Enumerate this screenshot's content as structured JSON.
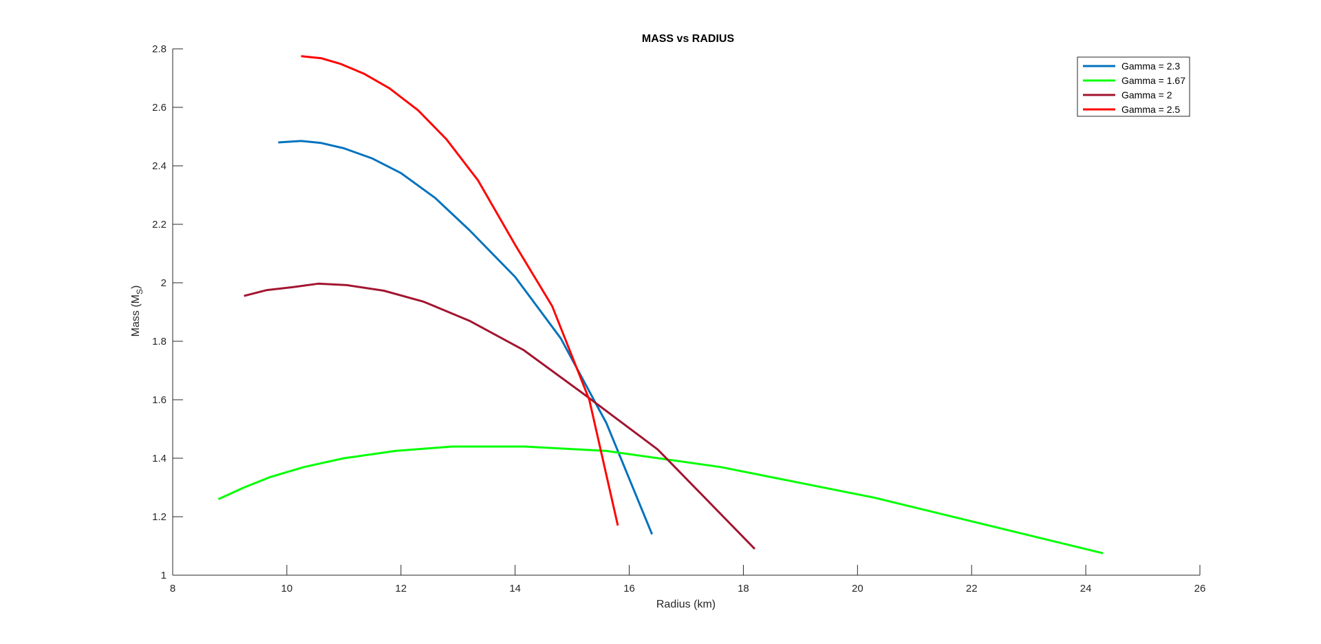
{
  "chart_data": {
    "type": "line",
    "title": "MASS vs RADIUS",
    "xlabel": "Radius (km)",
    "ylabel_main": "Mass (M",
    "ylabel_sub": "S",
    "ylabel_close": ")",
    "xlim": [
      8,
      26
    ],
    "ylim": [
      1,
      2.8
    ],
    "xticks": [
      8,
      10,
      12,
      14,
      16,
      18,
      20,
      22,
      24,
      26
    ],
    "yticks": [
      1,
      1.2,
      1.4,
      1.6,
      1.8,
      2,
      2.2,
      2.4,
      2.6,
      2.8
    ],
    "grid": false,
    "legend_position": "top-right",
    "series": [
      {
        "name": "Gamma = 2.3",
        "color": "#0072BD",
        "x": [
          9.85,
          10.25,
          10.6,
          11.0,
          11.5,
          12.0,
          12.6,
          13.2,
          14.0,
          14.8,
          15.6,
          16.4
        ],
        "y": [
          2.48,
          2.485,
          2.478,
          2.46,
          2.425,
          2.375,
          2.29,
          2.18,
          2.02,
          1.81,
          1.52,
          1.14
        ]
      },
      {
        "name": "Gamma = 1.67",
        "color": "#00FF00",
        "x": [
          8.8,
          9.25,
          9.7,
          10.3,
          11.0,
          11.9,
          12.9,
          14.15,
          15.6,
          17.6,
          20.3,
          24.3
        ],
        "y": [
          1.26,
          1.3,
          1.335,
          1.37,
          1.4,
          1.425,
          1.44,
          1.44,
          1.425,
          1.37,
          1.265,
          1.075
        ]
      },
      {
        "name": "Gamma = 2",
        "color": "#A2142F",
        "x": [
          9.25,
          9.65,
          10.1,
          10.55,
          11.05,
          11.7,
          12.4,
          13.2,
          14.15,
          15.2,
          16.5,
          18.2
        ],
        "y": [
          1.955,
          1.975,
          1.985,
          1.997,
          1.992,
          1.973,
          1.935,
          1.87,
          1.77,
          1.62,
          1.43,
          1.09
        ]
      },
      {
        "name": "Gamma = 2.5",
        "color": "#FF0000",
        "x": [
          10.25,
          10.6,
          10.95,
          11.35,
          11.8,
          12.3,
          12.8,
          13.35,
          14.0,
          14.65,
          15.3,
          15.8
        ],
        "y": [
          2.775,
          2.768,
          2.748,
          2.715,
          2.665,
          2.59,
          2.49,
          2.35,
          2.13,
          1.92,
          1.6,
          1.17
        ]
      }
    ]
  }
}
